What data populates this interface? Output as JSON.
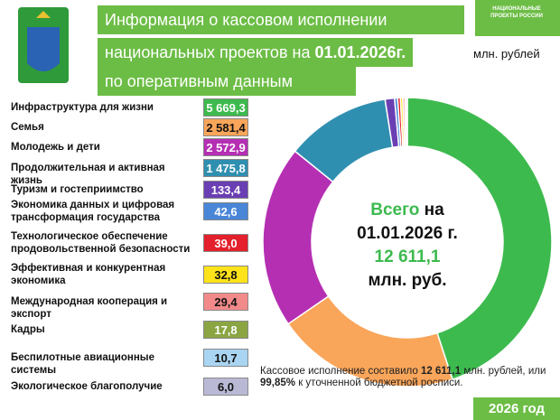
{
  "chart_data": {
    "type": "pie",
    "donut": true,
    "title_lines": [
      "Информация о кассовом исполнении",
      "национальных проектов на ",
      "01.01.2026г.",
      "по оперативным данным"
    ],
    "unit": "млн. рублей",
    "logo": "НАЦИОНАЛЬНЫЕ ПРОЕКТЫ РОССИИ",
    "center_text": [
      "Всего",
      " на",
      "01.01.2026 г.",
      "12 611,1",
      "млн. руб."
    ],
    "footnote": [
      "Кассовое исполнение составило ",
      "12 611,1",
      " млн. рублей, или ",
      "99,85%",
      " к уточненной бюджетной росписи."
    ],
    "year_badge": "2026 год",
    "categories": [
      "Инфраструктура для жизни",
      "Семья",
      "Молодежь и дети",
      "Продолжительная и активная жизнь",
      "Туризм и гостеприимство",
      "Экономика данных и цифровая трансформация государства",
      "Технологическое обеспечение продовольственной безопасности",
      "Эффективная и конкурентная экономика",
      "Международная кооперация и экспорт",
      "Кадры",
      "Беспилотные авиационные системы",
      "Экологическое благополучие"
    ],
    "values": [
      5669.3,
      2581.4,
      2572.9,
      1475.8,
      133.4,
      42.6,
      39.0,
      32.8,
      29.4,
      17.8,
      10.7,
      6.0
    ],
    "value_labels": [
      "5 669,3",
      "2 581,4",
      "2 572,9",
      "1 475,8",
      "133,4",
      "42,6",
      "39,0",
      "32,8",
      "29,4",
      "17,8",
      "10,7",
      "6,0"
    ],
    "colors": [
      "#3dba4e",
      "#f9a55a",
      "#b52fb3",
      "#2f8fb0",
      "#6a3fb3",
      "#4a86d8",
      "#e3202b",
      "#ffe31a",
      "#f28a8a",
      "#8ba543",
      "#a9d5f2",
      "#b9b9d6"
    ]
  }
}
